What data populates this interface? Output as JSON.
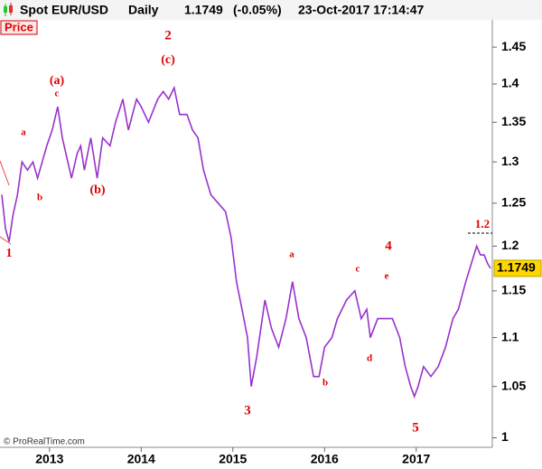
{
  "header": {
    "instrument": "Spot EUR/USD",
    "period": "Daily",
    "change": "(-0.05%)",
    "datetime": "23-Oct-2017 17:14:47",
    "panel": "Price",
    "copyright": "© ProRealTime.com"
  },
  "chart_data": {
    "type": "line",
    "log_scale": true,
    "color": "#9932cc",
    "last_price": 1.1749,
    "x": [
      2012.48,
      2012.52,
      2012.56,
      2012.6,
      2012.65,
      2012.7,
      2012.76,
      2012.82,
      2012.87,
      2012.92,
      2012.97,
      2013.03,
      2013.09,
      2013.14,
      2013.2,
      2013.24,
      2013.3,
      2013.34,
      2013.38,
      2013.45,
      2013.52,
      2013.58,
      2013.66,
      2013.72,
      2013.8,
      2013.86,
      2013.95,
      2014.0,
      2014.08,
      2014.18,
      2014.24,
      2014.3,
      2014.36,
      2014.42,
      2014.5,
      2014.56,
      2014.62,
      2014.68,
      2014.76,
      2014.84,
      2014.92,
      2014.98,
      2015.04,
      2015.1,
      2015.16,
      2015.2,
      2015.26,
      2015.35,
      2015.42,
      2015.5,
      2015.58,
      2015.65,
      2015.72,
      2015.8,
      2015.88,
      2015.94,
      2016.0,
      2016.08,
      2016.14,
      2016.24,
      2016.33,
      2016.4,
      2016.46,
      2016.5,
      2016.58,
      2016.66,
      2016.74,
      2016.82,
      2016.88,
      2016.94,
      2016.98,
      2017.02,
      2017.08,
      2017.16,
      2017.24,
      2017.32,
      2017.4,
      2017.46,
      2017.54,
      2017.6,
      2017.66,
      2017.7,
      2017.74,
      2017.78,
      2017.81
    ],
    "values": [
      1.26,
      1.22,
      1.205,
      1.235,
      1.26,
      1.3,
      1.29,
      1.3,
      1.28,
      1.3,
      1.32,
      1.34,
      1.37,
      1.33,
      1.3,
      1.28,
      1.31,
      1.32,
      1.29,
      1.33,
      1.28,
      1.33,
      1.32,
      1.35,
      1.38,
      1.34,
      1.38,
      1.37,
      1.35,
      1.38,
      1.39,
      1.38,
      1.395,
      1.36,
      1.36,
      1.34,
      1.33,
      1.29,
      1.26,
      1.25,
      1.24,
      1.21,
      1.16,
      1.13,
      1.1,
      1.05,
      1.08,
      1.14,
      1.11,
      1.09,
      1.12,
      1.16,
      1.12,
      1.1,
      1.06,
      1.06,
      1.09,
      1.1,
      1.12,
      1.14,
      1.15,
      1.12,
      1.13,
      1.1,
      1.12,
      1.12,
      1.12,
      1.1,
      1.07,
      1.05,
      1.04,
      1.05,
      1.07,
      1.06,
      1.07,
      1.09,
      1.12,
      1.13,
      1.16,
      1.18,
      1.2,
      1.19,
      1.19,
      1.18,
      1.1749
    ],
    "xlim": [
      2012.46,
      2017.83
    ],
    "xticks": [
      2013,
      2014,
      2015,
      2016,
      2017
    ],
    "ylim": [
      0.991,
      1.488
    ],
    "yticks": [
      1,
      1.05,
      1.1,
      1.15,
      1.2,
      1.25,
      1.3,
      1.35,
      1.4,
      1.45
    ],
    "annotations": [
      "1",
      "a",
      "b",
      "(a)",
      "c",
      "(b)",
      "2",
      "(c)",
      "3",
      "a",
      "b",
      "c",
      "d",
      "4",
      "e",
      "5",
      "1.2"
    ]
  }
}
